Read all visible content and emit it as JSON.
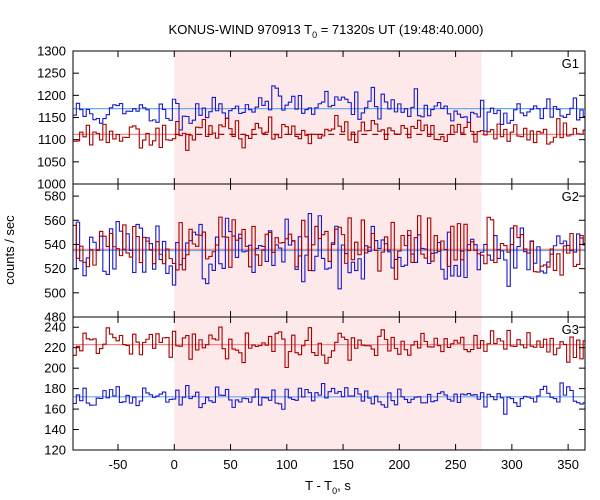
{
  "chart_data": {
    "type": "line",
    "title_main": "KONUS-WIND 970913 T",
    "title_sub": "0",
    "title_rest": " = 71320s UT (19:48:40.000)",
    "xlabel_main": "T - T",
    "xlabel_sub": "0",
    "xlabel_rest": ", s",
    "ylabel": "counts / sec",
    "xlim": [
      -90,
      365
    ],
    "x_ticks": [
      -50,
      0,
      50,
      100,
      150,
      200,
      250,
      300,
      350
    ],
    "x_tick_labels": [
      "-50",
      "0",
      "50",
      "100",
      "150",
      "200",
      "250",
      "300",
      "350"
    ],
    "shaded_interval": [
      0,
      273
    ],
    "bin_width": 2.944,
    "colors": {
      "series_a": "#1a1acc",
      "series_b": "#aa0000",
      "fit_a": "#66aaee",
      "fit_b": "#ee8888",
      "shade": "#fde8ea"
    },
    "panels": [
      {
        "label": "G1",
        "ylim": [
          1000,
          1300
        ],
        "y_ticks": [
          1000,
          1050,
          1100,
          1150,
          1200,
          1250,
          1300
        ],
        "background_levels": [
          1170,
          1112
        ],
        "series": [
          {
            "color_key": "series_a",
            "baseline": 1160,
            "bump": 25,
            "noise": 17,
            "seed": 11
          },
          {
            "color_key": "series_b",
            "baseline": 1112,
            "bump": 8,
            "noise": 14,
            "seed": 23
          }
        ]
      },
      {
        "label": "G2",
        "ylim": [
          480,
          590
        ],
        "y_ticks": [
          480,
          500,
          520,
          540,
          560,
          580
        ],
        "background_levels": [
          535,
          536
        ],
        "series": [
          {
            "color_key": "series_a",
            "baseline": 534,
            "bump": 0,
            "noise": 13,
            "seed": 37
          },
          {
            "color_key": "series_b",
            "baseline": 538,
            "bump": 0,
            "noise": 13,
            "seed": 51
          }
        ]
      },
      {
        "label": "G3",
        "ylim": [
          120,
          250
        ],
        "y_ticks": [
          120,
          140,
          160,
          180,
          200,
          220,
          240
        ],
        "background_levels": [
          172,
          223
        ],
        "series": [
          {
            "color_key": "series_a",
            "baseline": 171,
            "bump": 0,
            "noise": 5.5,
            "seed": 67
          },
          {
            "color_key": "series_b",
            "baseline": 224,
            "bump": 0,
            "noise": 7.5,
            "seed": 79
          }
        ]
      }
    ]
  }
}
